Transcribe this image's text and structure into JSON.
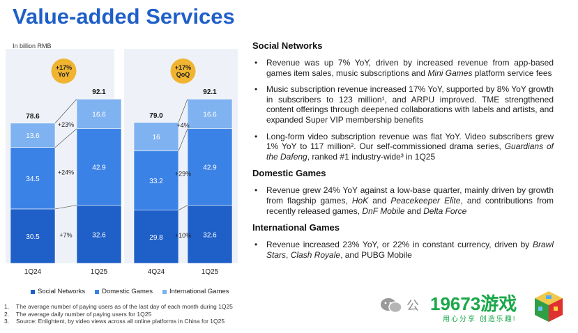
{
  "title": "Value-added Services",
  "unit_label": "In billion RMB",
  "chart_data": {
    "type": "bar",
    "stacked": true,
    "categories": [
      "1Q24",
      "1Q25",
      "4Q24",
      "1Q25"
    ],
    "series": [
      {
        "name": "Social Networks",
        "values": [
          30.5,
          32.6,
          29.8,
          32.6
        ],
        "color": "#1f5fc8"
      },
      {
        "name": "Domestic Games",
        "values": [
          34.5,
          42.9,
          33.2,
          42.9
        ],
        "color": "#3b82e6"
      },
      {
        "name": "International Games",
        "values": [
          13.6,
          16.6,
          16.0,
          16.6
        ],
        "color": "#7fb2f0"
      }
    ],
    "totals": [
      "78.6",
      "92.1",
      "79.0",
      "92.1"
    ],
    "growth_badges": [
      {
        "line1": "+17%",
        "line2": "YoY"
      },
      {
        "line1": "+17%",
        "line2": "QoQ"
      }
    ],
    "growth_labels": [
      [
        "+7%",
        "+24%",
        "+23%"
      ],
      [
        "+10%",
        "+29%",
        "+4%"
      ]
    ],
    "ylim": [
      0,
      100
    ]
  },
  "legend": [
    "Social Networks",
    "Domestic Games",
    "International Games"
  ],
  "footnotes": [
    {
      "num": "1.",
      "text": "The average number of paying users as of the last day of each month during 1Q25"
    },
    {
      "num": "2.",
      "text": "The average daily number of paying users for 1Q25"
    },
    {
      "num": "3.",
      "text": "Source: Enlightent, by video views across all online platforms in China for 1Q25"
    }
  ],
  "sections": [
    {
      "heading": "Social Networks",
      "bullets": [
        "Revenue was up 7% YoY, driven by increased revenue from app-based games item sales, music subscriptions and Mini Games platform service fees",
        "Music subscription revenue increased 17% YoY, supported by 8% YoY growth in subscribers to 123 million¹, and ARPU improved. TME strengthened content offerings through deepened collaborations with labels and artists, and expanded Super VIP membership benefits",
        "Long-form video subscription revenue was flat YoY. Video subscribers grew 1% YoY to 117 million². Our self-commissioned drama series, Guardians of the Dafeng, ranked #1 industry-wide³ in 1Q25"
      ]
    },
    {
      "heading": "Domestic Games",
      "bullets": [
        "Revenue grew 24% YoY against a low-base quarter, mainly driven by growth from flagship games, HoK and Peacekeeper Elite, and contributions from recently released games, DnF Mobile and Delta Force"
      ]
    },
    {
      "heading": "International Games",
      "bullets": [
        "Revenue increased 23% YoY, or 22% in constant currency, driven by Brawl Stars, Clash Royale, and PUBG Mobile"
      ]
    }
  ],
  "watermark": {
    "wechat_char": "公",
    "brand_name": "19673游戏",
    "slogan": "用心分享 创造乐趣!"
  }
}
